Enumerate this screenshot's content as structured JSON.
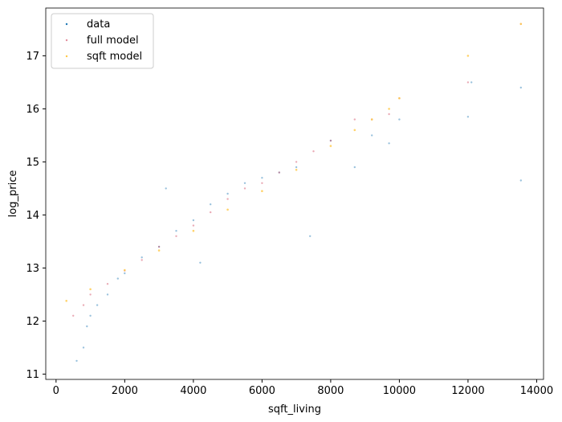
{
  "chart_data": {
    "type": "scatter",
    "xlabel": "sqft_living",
    "ylabel": "log_price",
    "xlim": [
      -300,
      14200
    ],
    "ylim": [
      10.9,
      17.9
    ],
    "xticks": [
      0,
      2000,
      4000,
      6000,
      8000,
      10000,
      12000,
      14000
    ],
    "yticks": [
      11,
      12,
      13,
      14,
      15,
      16,
      17
    ],
    "grid": false,
    "legend_position": "top-left",
    "series": [
      {
        "name": "data",
        "color": "#1f77b4",
        "marker_alpha": 0.45,
        "points": [
          [
            600,
            11.25
          ],
          [
            800,
            11.5
          ],
          [
            900,
            11.9
          ],
          [
            1000,
            12.1
          ],
          [
            1200,
            12.3
          ],
          [
            1500,
            12.5
          ],
          [
            1800,
            12.8
          ],
          [
            2000,
            12.9
          ],
          [
            2500,
            13.2
          ],
          [
            3000,
            13.4
          ],
          [
            3500,
            13.7
          ],
          [
            4000,
            13.9
          ],
          [
            4500,
            14.2
          ],
          [
            5000,
            14.4
          ],
          [
            5500,
            14.6
          ],
          [
            6000,
            14.7
          ],
          [
            6500,
            14.8
          ],
          [
            7000,
            14.9
          ],
          [
            7400,
            13.6
          ],
          [
            8000,
            15.4
          ],
          [
            8700,
            14.9
          ],
          [
            9200,
            15.5
          ],
          [
            9700,
            15.35
          ],
          [
            10000,
            15.8
          ],
          [
            12000,
            15.85
          ],
          [
            13540,
            16.4
          ],
          [
            13540,
            14.65
          ],
          [
            12100,
            16.5
          ],
          [
            4200,
            13.1
          ],
          [
            3200,
            14.5
          ]
        ]
      },
      {
        "name": "full model",
        "color": "#d1445e",
        "marker_alpha": 0.45,
        "points": [
          [
            500,
            12.1
          ],
          [
            800,
            12.3
          ],
          [
            1000,
            12.5
          ],
          [
            1500,
            12.7
          ],
          [
            2000,
            12.95
          ],
          [
            2500,
            13.15
          ],
          [
            3000,
            13.4
          ],
          [
            3500,
            13.6
          ],
          [
            4000,
            13.8
          ],
          [
            4500,
            14.05
          ],
          [
            5000,
            14.3
          ],
          [
            5500,
            14.5
          ],
          [
            6000,
            14.6
          ],
          [
            6500,
            14.8
          ],
          [
            7000,
            15.0
          ],
          [
            7500,
            15.2
          ],
          [
            8000,
            15.4
          ],
          [
            8700,
            15.8
          ],
          [
            9200,
            15.8
          ],
          [
            9700,
            15.9
          ],
          [
            10000,
            16.2
          ],
          [
            12000,
            16.5
          ],
          [
            13540,
            17.6
          ]
        ]
      },
      {
        "name": "sqft model",
        "color": "#ffc846",
        "marker_alpha": 0.8,
        "points": [
          [
            300,
            12.38
          ],
          [
            1000,
            12.6
          ],
          [
            2000,
            12.96
          ],
          [
            3000,
            13.33
          ],
          [
            4000,
            13.7
          ],
          [
            5000,
            14.1
          ],
          [
            6000,
            14.45
          ],
          [
            7000,
            14.85
          ],
          [
            8000,
            15.3
          ],
          [
            8700,
            15.6
          ],
          [
            9200,
            15.8
          ],
          [
            9700,
            16.0
          ],
          [
            10000,
            16.2
          ],
          [
            12000,
            17.0
          ],
          [
            13540,
            17.6
          ]
        ]
      }
    ]
  }
}
